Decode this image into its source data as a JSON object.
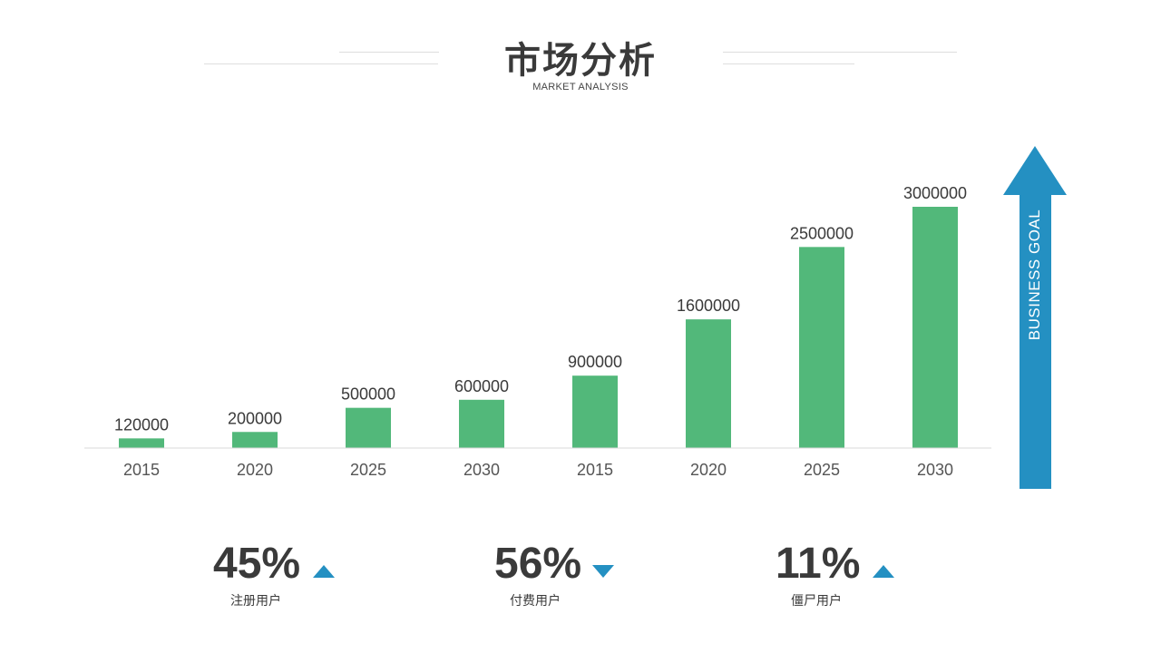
{
  "header": {
    "title": "市场分析",
    "subtitle": "MARKET ANALYSIS"
  },
  "goal_arrow": {
    "label": "BUSINESS GOAL",
    "color": "#2490c2"
  },
  "chart_data": {
    "type": "bar",
    "categories": [
      "2015",
      "2020",
      "2025",
      "2030",
      "2015",
      "2020",
      "2025",
      "2030"
    ],
    "values": [
      120000,
      200000,
      500000,
      600000,
      900000,
      1600000,
      2500000,
      3000000
    ],
    "data_labels": [
      "120000",
      "200000",
      "500000",
      "600000",
      "900000",
      "1600000",
      "2500000",
      "3000000"
    ],
    "title": "",
    "xlabel": "",
    "ylabel": "",
    "ylim": [
      0,
      3000000
    ],
    "grid": false,
    "bar_color": "#52b87a"
  },
  "stats": [
    {
      "value": "45%",
      "label": "注册用户",
      "trend": "up"
    },
    {
      "value": "56%",
      "label": "付费用户",
      "trend": "down"
    },
    {
      "value": "11%",
      "label": "僵尸用户",
      "trend": "up"
    }
  ]
}
